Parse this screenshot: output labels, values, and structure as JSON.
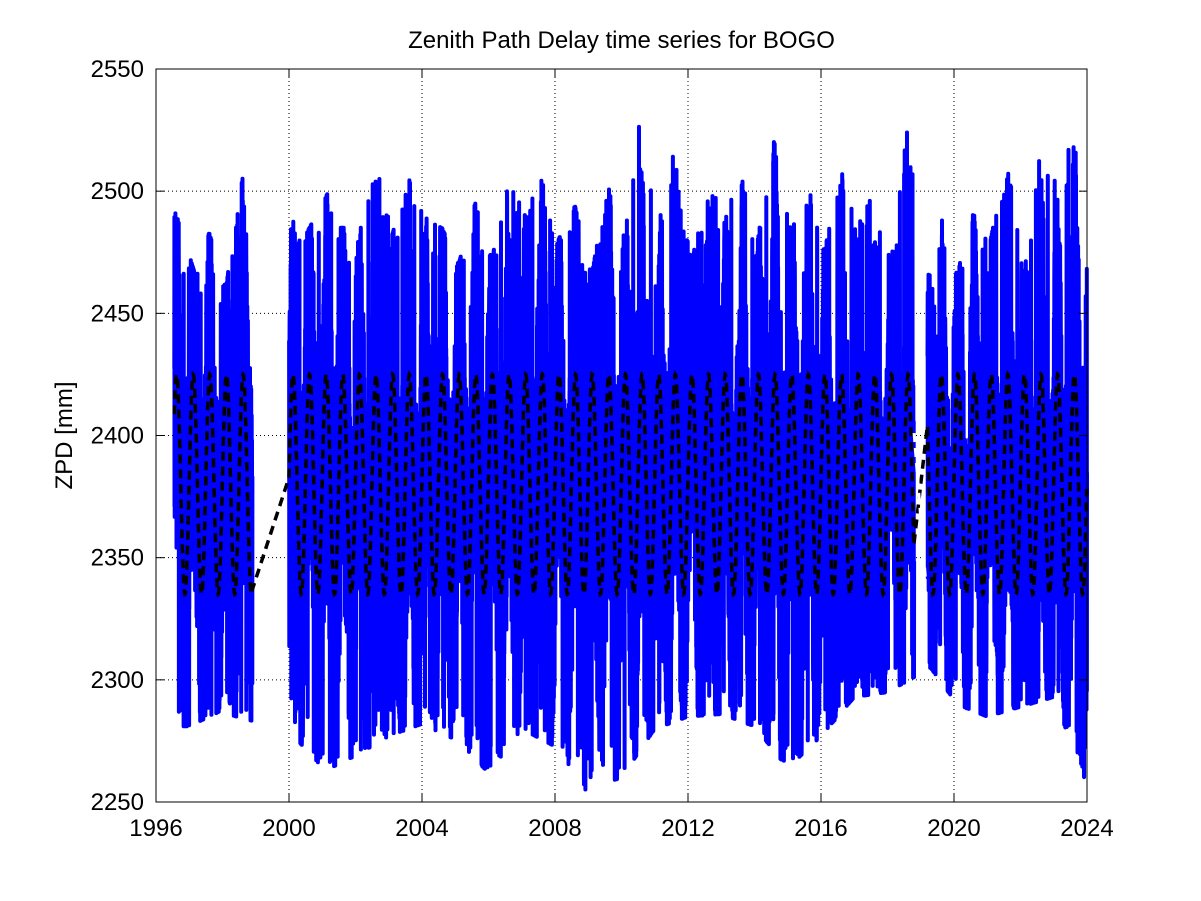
{
  "chart_data": {
    "type": "line",
    "title": "Zenith Path Delay time series for BOGO",
    "xlabel": "",
    "ylabel": "ZPD [mm]",
    "xlim": [
      1996,
      2024
    ],
    "ylim": [
      2250,
      2550
    ],
    "xticks": [
      "1996",
      "2000",
      "2004",
      "2008",
      "2012",
      "2016",
      "2020",
      "2024"
    ],
    "yticks": [
      "2250",
      "2300",
      "2350",
      "2400",
      "2450",
      "2500",
      "2550"
    ],
    "grid": true,
    "gaps": [
      [
        1998.9,
        2000.0
      ],
      [
        2018.8,
        2019.2
      ]
    ],
    "series": [
      {
        "style": "solid",
        "color": "#0000ff",
        "description_values": "raw ZPD observations, oscillating roughly between 2260 and 2540 mm with a semi-annual cycle",
        "values": []
      },
      {
        "style": "dashed",
        "color": "#000000",
        "values": []
      }
    ],
    "raw_envelope": {
      "peaks": [
        [
          1996.6,
          2491
        ],
        [
          1997.2,
          2465
        ],
        [
          1997.6,
          2483
        ],
        [
          1998.1,
          2460
        ],
        [
          1998.6,
          2510
        ],
        [
          2000.5,
          2482
        ],
        [
          2001.2,
          2500
        ],
        [
          2001.5,
          2485
        ],
        [
          2002.2,
          2485
        ],
        [
          2002.6,
          2519
        ],
        [
          2003.1,
          2482
        ],
        [
          2003.6,
          2505
        ],
        [
          2004.1,
          2490
        ],
        [
          2004.6,
          2485
        ],
        [
          2005.1,
          2470
        ],
        [
          2005.6,
          2495
        ],
        [
          2006.1,
          2472
        ],
        [
          2006.6,
          2505
        ],
        [
          2007.1,
          2490
        ],
        [
          2007.6,
          2511
        ],
        [
          2008.1,
          2480
        ],
        [
          2008.6,
          2494
        ],
        [
          2009.1,
          2465
        ],
        [
          2009.6,
          2506
        ],
        [
          2010.1,
          2480
        ],
        [
          2010.6,
          2543
        ],
        [
          2011.1,
          2485
        ],
        [
          2011.6,
          2520
        ],
        [
          2012.1,
          2470
        ],
        [
          2012.6,
          2505
        ],
        [
          2013.1,
          2493
        ],
        [
          2013.6,
          2506
        ],
        [
          2014.1,
          2480
        ],
        [
          2014.6,
          2528
        ],
        [
          2015.1,
          2483
        ],
        [
          2015.6,
          2503
        ],
        [
          2016.1,
          2475
        ],
        [
          2016.6,
          2508
        ],
        [
          2017.1,
          2494
        ],
        [
          2017.6,
          2500
        ],
        [
          2018.1,
          2470
        ],
        [
          2018.6,
          2526
        ],
        [
          2019.4,
          2460
        ],
        [
          2019.6,
          2490
        ],
        [
          2020.1,
          2465
        ],
        [
          2020.6,
          2500
        ],
        [
          2021.1,
          2480
        ],
        [
          2021.6,
          2515
        ],
        [
          2022.1,
          2465
        ],
        [
          2022.6,
          2519
        ],
        [
          2023.1,
          2504
        ],
        [
          2023.6,
          2524
        ]
      ],
      "troughs": [
        [
          1997.0,
          2281
        ],
        [
          1997.9,
          2287
        ],
        [
          2000.0,
          2279
        ],
        [
          2001.1,
          2263
        ],
        [
          2002.0,
          2269
        ],
        [
          2003.0,
          2277
        ],
        [
          2004.0,
          2282
        ],
        [
          2005.1,
          2275
        ],
        [
          2006.0,
          2262
        ],
        [
          2007.0,
          2280
        ],
        [
          2008.1,
          2272
        ],
        [
          2008.9,
          2255
        ],
        [
          2010.0,
          2260
        ],
        [
          2011.0,
          2280
        ],
        [
          2012.0,
          2285
        ],
        [
          2013.0,
          2286
        ],
        [
          2014.0,
          2281
        ],
        [
          2015.0,
          2264
        ],
        [
          2016.0,
          2277
        ],
        [
          2017.0,
          2293
        ],
        [
          2018.0,
          2295
        ],
        [
          2019.3,
          2305
        ],
        [
          2020.1,
          2290
        ],
        [
          2021.0,
          2285
        ],
        [
          2022.0,
          2289
        ],
        [
          2023.0,
          2293
        ],
        [
          2024.0,
          2257
        ]
      ]
    }
  }
}
